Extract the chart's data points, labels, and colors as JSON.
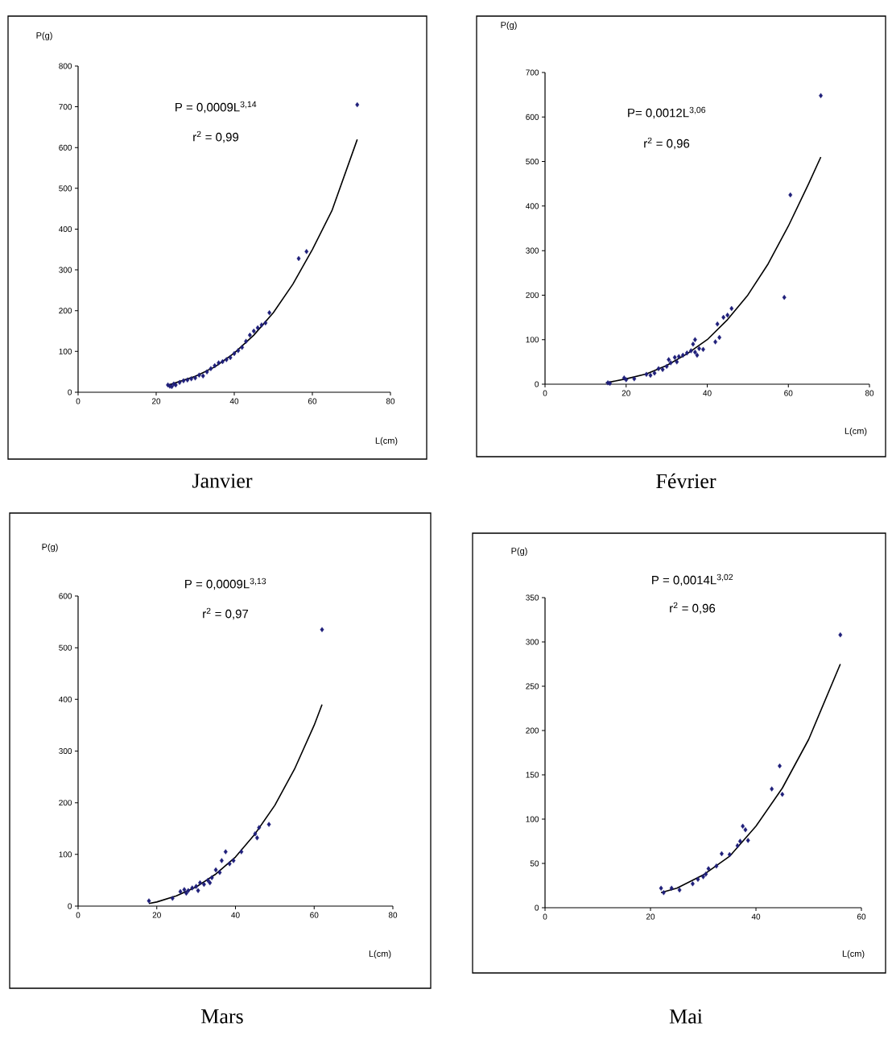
{
  "chart_data": [
    {
      "type": "scatter",
      "title": "Janvier",
      "xlabel": "L(cm)",
      "ylabel": "P(g)",
      "xlim": [
        0,
        80
      ],
      "ylim": [
        0,
        800
      ],
      "xticks": [
        0,
        20,
        40,
        60,
        80
      ],
      "yticks": [
        0,
        100,
        200,
        300,
        400,
        500,
        600,
        700,
        800
      ],
      "marker": "diamond",
      "annotations": [
        "P = 0,0009L$^{3,14}$",
        "r$^{2}$ = 0,99"
      ],
      "series": [
        {
          "color": "#1f1f7a",
          "x": [
            23,
            23.5,
            24,
            24.5,
            25,
            26,
            27,
            28,
            29,
            30,
            31,
            32,
            33,
            34,
            35,
            36,
            37,
            38,
            39,
            40,
            41,
            42,
            43,
            44,
            45,
            46,
            47,
            48,
            49,
            56.5,
            58.5,
            71.5
          ],
          "values": [
            18,
            15,
            14,
            20,
            18,
            24,
            28,
            30,
            33,
            35,
            42,
            40,
            50,
            58,
            65,
            72,
            75,
            80,
            85,
            95,
            102,
            110,
            125,
            140,
            150,
            158,
            165,
            170,
            195,
            328,
            345,
            705
          ]
        },
        {
          "type": "line",
          "color": "#000000",
          "marker": "none",
          "line_style": "solid",
          "x": [
            23,
            30,
            35,
            40,
            45,
            50,
            55,
            60,
            65,
            71.5
          ],
          "values": [
            17,
            39,
            62,
            96,
            140,
            195,
            265,
            350,
            445,
            620
          ]
        }
      ]
    },
    {
      "type": "scatter",
      "title": "Février",
      "xlabel": "L(cm)",
      "ylabel": "P(g)",
      "xlim": [
        0,
        80
      ],
      "ylim": [
        0,
        700
      ],
      "xticks": [
        0,
        20,
        40,
        60,
        80
      ],
      "yticks": [
        0,
        100,
        200,
        300,
        400,
        500,
        600,
        700
      ],
      "marker": "diamond",
      "annotations": [
        "P= 0,0012L$^{3,06}$",
        "r$^{2}$ = 0,96"
      ],
      "series": [
        {
          "color": "#1f1f7a",
          "x": [
            15.5,
            16,
            19.5,
            20,
            22,
            25,
            26,
            27,
            28,
            29,
            30,
            30.5,
            31,
            32,
            32.5,
            33,
            34,
            35,
            36,
            36.5,
            37,
            37,
            37.5,
            38,
            39,
            42,
            43,
            42.5,
            44,
            45,
            46,
            59,
            60.5,
            68
          ],
          "values": [
            3,
            2,
            14,
            10,
            12,
            22,
            20,
            25,
            35,
            33,
            40,
            55,
            48,
            60,
            50,
            62,
            65,
            70,
            75,
            90,
            100,
            72,
            65,
            80,
            78,
            95,
            105,
            135,
            150,
            155,
            170,
            195,
            425,
            648
          ]
        },
        {
          "type": "line",
          "color": "#000000",
          "marker": "none",
          "line_style": "solid",
          "x": [
            15,
            20,
            25,
            30,
            35,
            40,
            45,
            50,
            55,
            60,
            65,
            68
          ],
          "values": [
            3,
            12,
            23,
            42,
            68,
            100,
            145,
            200,
            270,
            355,
            450,
            510
          ]
        }
      ]
    },
    {
      "type": "scatter",
      "title": "Mars",
      "xlabel": "L(cm)",
      "ylabel": "P(g)",
      "xlim": [
        0,
        80
      ],
      "ylim": [
        0,
        600
      ],
      "xticks": [
        0,
        20,
        40,
        60,
        80
      ],
      "yticks": [
        0,
        100,
        200,
        300,
        400,
        500,
        600
      ],
      "marker": "diamond",
      "annotations": [
        "P = 0,0009L$^{3,13}$",
        "r$^{2}$ = 0,97"
      ],
      "series": [
        {
          "color": "#1f1f7a",
          "x": [
            18,
            24,
            26,
            27,
            27.5,
            28,
            29,
            30,
            30.5,
            31,
            32,
            33,
            33.5,
            34,
            35,
            36,
            36.5,
            37.5,
            38.5,
            39.5,
            41.5,
            45,
            45.5,
            46,
            48.5,
            62
          ],
          "values": [
            10,
            15,
            28,
            32,
            25,
            30,
            35,
            38,
            30,
            45,
            42,
            50,
            45,
            55,
            70,
            65,
            88,
            105,
            82,
            88,
            105,
            140,
            132,
            152,
            158,
            535
          ]
        },
        {
          "type": "line",
          "color": "#000000",
          "marker": "none",
          "line_style": "solid",
          "x": [
            18,
            20,
            25,
            30,
            35,
            40,
            45,
            50,
            55,
            60,
            62
          ],
          "values": [
            5,
            8,
            20,
            37,
            62,
            95,
            140,
            195,
            265,
            350,
            390
          ]
        }
      ]
    },
    {
      "type": "scatter",
      "title": "Mai",
      "xlabel": "L(cm)",
      "ylabel": "P(g)",
      "xlim": [
        0,
        60
      ],
      "ylim": [
        0,
        350
      ],
      "xticks": [
        0,
        20,
        40,
        60
      ],
      "yticks": [
        0,
        50,
        100,
        150,
        200,
        250,
        300,
        350
      ],
      "marker": "diamond",
      "annotations": [
        "P = 0,0014L$^{3,02}$",
        "r$^{2}$ = 0,96"
      ],
      "series": [
        {
          "color": "#1f1f7a",
          "x": [
            22,
            22.5,
            24,
            25.5,
            28,
            29,
            30,
            30.5,
            31,
            32.5,
            33.5,
            35,
            36.5,
            37,
            37.5,
            38,
            38.5,
            43,
            44.5,
            45,
            56
          ],
          "values": [
            22,
            17,
            22,
            20,
            27,
            32,
            35,
            38,
            44,
            47,
            61,
            60,
            70,
            75,
            92,
            88,
            76,
            134,
            160,
            128,
            308
          ]
        },
        {
          "type": "line",
          "color": "#000000",
          "marker": "none",
          "line_style": "solid",
          "x": [
            22,
            25,
            30,
            35,
            40,
            45,
            50,
            56
          ],
          "values": [
            17,
            22,
            37,
            58,
            92,
            135,
            190,
            275
          ]
        }
      ]
    }
  ]
}
